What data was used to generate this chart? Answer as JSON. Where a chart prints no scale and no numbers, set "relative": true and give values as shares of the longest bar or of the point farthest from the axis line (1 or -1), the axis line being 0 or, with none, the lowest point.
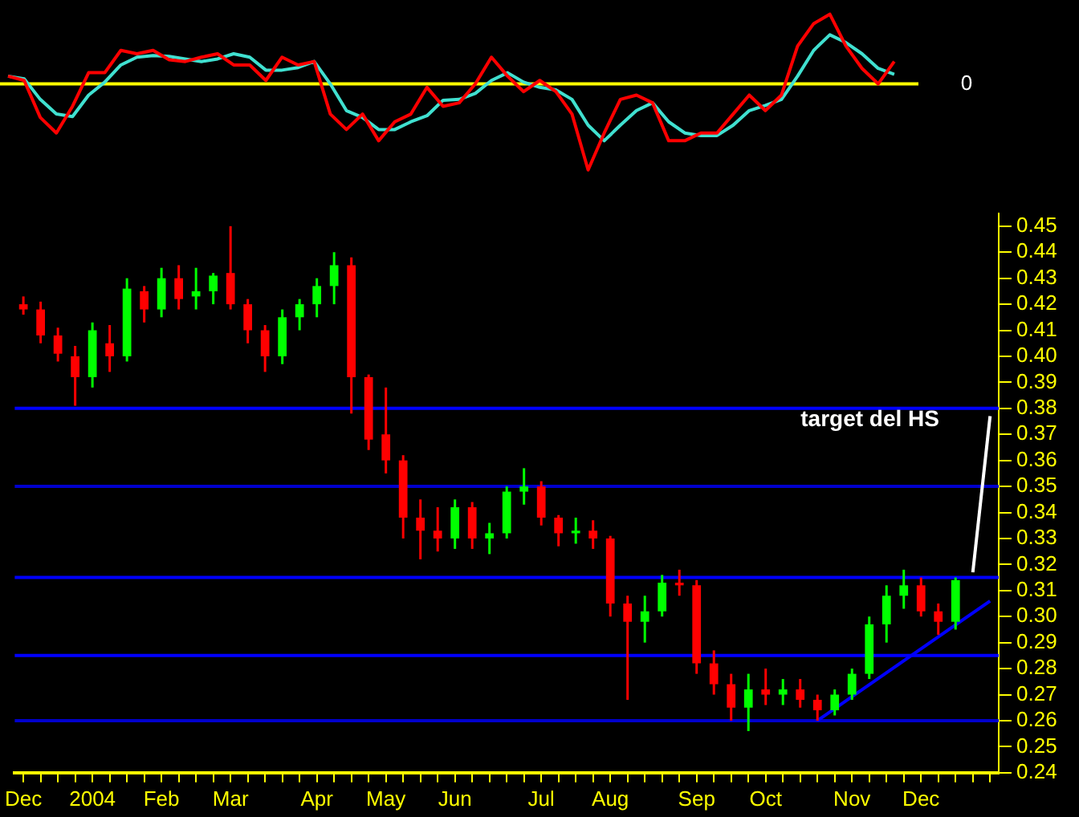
{
  "chart_data": [
    {
      "type": "line",
      "relative": true,
      "tick_labels": false,
      "categories": [
        null,
        null,
        null,
        null,
        null,
        null,
        null,
        null,
        null,
        null,
        null,
        null,
        null,
        null,
        null,
        null,
        null,
        null,
        null,
        null,
        null,
        null,
        null,
        null,
        null,
        null,
        null,
        null,
        null,
        null,
        null,
        null,
        null,
        null,
        null,
        null,
        null,
        null,
        null,
        null,
        null,
        null,
        null,
        null,
        null,
        null,
        null,
        null,
        null,
        null,
        null,
        null,
        null,
        null,
        null,
        null,
        null
      ],
      "series": [
        {
          "color": "#ff0000",
          "values": [
            0.09,
            0.04,
            -0.39,
            -0.57,
            -0.26,
            0.13,
            0.13,
            0.39,
            0.35,
            0.39,
            0.28,
            0.26,
            0.31,
            0.35,
            0.22,
            0.22,
            0.04,
            0.31,
            0.22,
            0.26,
            -0.35,
            -0.53,
            -0.35,
            -0.66,
            -0.44,
            -0.35,
            -0.04,
            -0.26,
            -0.22,
            0,
            0.31,
            0.09,
            -0.09,
            0.04,
            -0.09,
            -0.35,
            -1,
            -0.57,
            -0.18,
            -0.13,
            -0.22,
            -0.66,
            -0.66,
            -0.57,
            -0.57,
            -0.35,
            -0.13,
            -0.31,
            -0.13,
            0.44,
            0.7,
            0.81,
            0.44,
            0.18,
            0,
            0.26,
            null
          ]
        },
        {
          "color": "#40e0d0",
          "values": [
            0.09,
            0.06,
            -0.18,
            -0.35,
            -0.38,
            -0.13,
            0.02,
            0.22,
            0.31,
            0.33,
            0.32,
            0.29,
            0.26,
            0.29,
            0.35,
            0.31,
            0.16,
            0.16,
            0.19,
            0.26,
            0,
            -0.31,
            -0.39,
            -0.53,
            -0.53,
            -0.44,
            -0.37,
            -0.19,
            -0.18,
            -0.11,
            0.04,
            0.13,
            0.02,
            -0.04,
            -0.07,
            -0.18,
            -0.48,
            -0.66,
            -0.48,
            -0.31,
            -0.22,
            -0.44,
            -0.57,
            -0.6,
            -0.6,
            -0.48,
            -0.31,
            -0.25,
            -0.18,
            0.09,
            0.39,
            0.57,
            0.48,
            0.35,
            0.18,
            0.11,
            null
          ]
        }
      ],
      "ref_lines": [
        {
          "axis": "y",
          "value": 0,
          "label": "0",
          "color": "#ffff00"
        }
      ]
    },
    {
      "type": "candlestick",
      "categories": [
        "Dec",
        null,
        null,
        null,
        "2004",
        null,
        null,
        null,
        "Feb",
        null,
        null,
        null,
        "Mar",
        null,
        null,
        null,
        null,
        "Apr",
        null,
        null,
        null,
        "May",
        null,
        null,
        null,
        "Jun",
        null,
        null,
        null,
        null,
        "Jul",
        null,
        null,
        null,
        "Aug",
        null,
        null,
        null,
        null,
        "Sep",
        null,
        null,
        null,
        "Oct",
        null,
        null,
        null,
        null,
        "Nov",
        null,
        null,
        null,
        "Dec",
        null,
        null,
        null,
        null
      ],
      "ohlc": [
        [
          0.42,
          0.423,
          0.416,
          0.418
        ],
        [
          0.418,
          0.421,
          0.405,
          0.408
        ],
        [
          0.408,
          0.411,
          0.398,
          0.401
        ],
        [
          0.4,
          0.404,
          0.381,
          0.392
        ],
        [
          0.392,
          0.413,
          0.388,
          0.41
        ],
        [
          0.405,
          0.412,
          0.394,
          0.4
        ],
        [
          0.4,
          0.43,
          0.398,
          0.426
        ],
        [
          0.425,
          0.427,
          0.413,
          0.418
        ],
        [
          0.418,
          0.434,
          0.415,
          0.43
        ],
        [
          0.43,
          0.435,
          0.418,
          0.422
        ],
        [
          0.423,
          0.434,
          0.418,
          0.425
        ],
        [
          0.425,
          0.432,
          0.42,
          0.431
        ],
        [
          0.432,
          0.45,
          0.418,
          0.42
        ],
        [
          0.42,
          0.422,
          0.405,
          0.41
        ],
        [
          0.41,
          0.412,
          0.394,
          0.4
        ],
        [
          0.4,
          0.418,
          0.397,
          0.415
        ],
        [
          0.415,
          0.422,
          0.41,
          0.42
        ],
        [
          0.42,
          0.43,
          0.415,
          0.427
        ],
        [
          0.427,
          0.44,
          0.42,
          0.435
        ],
        [
          0.435,
          0.438,
          0.378,
          0.392
        ],
        [
          0.392,
          0.393,
          0.364,
          0.368
        ],
        [
          0.37,
          0.388,
          0.355,
          0.36
        ],
        [
          0.36,
          0.362,
          0.33,
          0.338
        ],
        [
          0.338,
          0.345,
          0.322,
          0.333
        ],
        [
          0.333,
          0.342,
          0.325,
          0.33
        ],
        [
          0.33,
          0.345,
          0.326,
          0.342
        ],
        [
          0.342,
          0.344,
          0.326,
          0.33
        ],
        [
          0.33,
          0.336,
          0.324,
          0.332
        ],
        [
          0.332,
          0.35,
          0.33,
          0.348
        ],
        [
          0.348,
          0.357,
          0.343,
          0.35
        ],
        [
          0.35,
          0.352,
          0.335,
          0.338
        ],
        [
          0.338,
          0.339,
          0.327,
          0.332
        ],
        [
          0.332,
          0.338,
          0.328,
          0.333
        ],
        [
          0.333,
          0.337,
          0.326,
          0.33
        ],
        [
          0.33,
          0.331,
          0.3,
          0.305
        ],
        [
          0.305,
          0.308,
          0.268,
          0.298
        ],
        [
          0.298,
          0.308,
          0.29,
          0.302
        ],
        [
          0.302,
          0.316,
          0.3,
          0.313
        ],
        [
          0.313,
          0.318,
          0.308,
          0.312
        ],
        [
          0.312,
          0.314,
          0.278,
          0.282
        ],
        [
          0.282,
          0.287,
          0.27,
          0.274
        ],
        [
          0.274,
          0.278,
          0.26,
          0.265
        ],
        [
          0.265,
          0.278,
          0.256,
          0.272
        ],
        [
          0.272,
          0.28,
          0.266,
          0.27
        ],
        [
          0.27,
          0.276,
          0.266,
          0.272
        ],
        [
          0.272,
          0.276,
          0.265,
          0.268
        ],
        [
          0.268,
          0.27,
          0.26,
          0.264
        ],
        [
          0.264,
          0.272,
          0.262,
          0.27
        ],
        [
          0.27,
          0.28,
          0.268,
          0.278
        ],
        [
          0.278,
          0.3,
          0.276,
          0.297
        ],
        [
          0.297,
          0.312,
          0.29,
          0.308
        ],
        [
          0.308,
          0.318,
          0.303,
          0.312
        ],
        [
          0.312,
          0.315,
          0.3,
          0.302
        ],
        [
          0.302,
          0.305,
          0.293,
          0.298
        ],
        [
          0.298,
          0.315,
          0.295,
          0.314
        ],
        null,
        null
      ],
      "colors": [
        "#ff0000",
        "#ff0000",
        "#ff0000",
        "#ff0000",
        "#00ff00",
        "#ff0000",
        "#00ff00",
        "#ff0000",
        "#00ff00",
        "#ff0000",
        "#00ff00",
        "#00ff00",
        "#ff0000",
        "#ff0000",
        "#ff0000",
        "#00ff00",
        "#00ff00",
        "#00ff00",
        "#00ff00",
        "#ff0000",
        "#ff0000",
        "#ff0000",
        "#ff0000",
        "#ff0000",
        "#ff0000",
        "#00ff00",
        "#ff0000",
        "#00ff00",
        "#00ff00",
        "#00ff00",
        "#ff0000",
        "#ff0000",
        "#00ff00",
        "#ff0000",
        "#ff0000",
        "#ff0000",
        "#00ff00",
        "#00ff00",
        "#ff0000",
        "#ff0000",
        "#ff0000",
        "#ff0000",
        "#00ff00",
        "#ff0000",
        "#00ff00",
        "#ff0000",
        "#ff0000",
        "#00ff00",
        "#00ff00",
        "#00ff00",
        "#00ff00",
        "#00ff00",
        "#ff0000",
        "#ff0000",
        "#00ff00",
        null,
        null
      ],
      "series": [
        {
          "type": "line",
          "color": "#0000ff",
          "values": [
            null,
            null,
            null,
            null,
            null,
            null,
            null,
            null,
            null,
            null,
            null,
            null,
            null,
            null,
            null,
            null,
            null,
            null,
            null,
            null,
            null,
            null,
            null,
            null,
            null,
            null,
            null,
            null,
            null,
            null,
            null,
            null,
            null,
            null,
            null,
            null,
            null,
            null,
            null,
            null,
            null,
            null,
            null,
            null,
            null,
            null,
            0.26,
            null,
            null,
            null,
            null,
            null,
            null,
            null,
            null,
            null,
            0.306
          ]
        },
        {
          "type": "line",
          "color": "#ffffff",
          "values": [
            null,
            null,
            null,
            null,
            null,
            null,
            null,
            null,
            null,
            null,
            null,
            null,
            null,
            null,
            null,
            null,
            null,
            null,
            null,
            null,
            null,
            null,
            null,
            null,
            null,
            null,
            null,
            null,
            null,
            null,
            null,
            null,
            null,
            null,
            null,
            null,
            null,
            null,
            null,
            null,
            null,
            null,
            null,
            null,
            null,
            null,
            null,
            null,
            null,
            null,
            null,
            null,
            null,
            null,
            null,
            0.317,
            0.377
          ]
        }
      ],
      "ylim": [
        0.24,
        0.455
      ],
      "yticks": [
        0.24,
        0.25,
        0.26,
        0.27,
        0.28,
        0.29,
        {
          "value": 0.3,
          "label": "0.30"
        },
        0.31,
        0.32,
        0.33,
        0.34,
        0.35,
        0.36,
        0.37,
        0.38,
        0.39,
        {
          "value": 0.4,
          "label": "0.40"
        },
        0.41,
        0.42,
        0.43,
        0.44,
        0.45
      ],
      "ref_lines": [
        {
          "axis": "y",
          "value": 0.38,
          "color": "#0000ff"
        },
        {
          "axis": "y",
          "value": 0.35,
          "color": "#0000cc"
        },
        {
          "axis": "y",
          "value": 0.315,
          "color": "#0000ff"
        },
        {
          "axis": "y",
          "value": 0.285,
          "color": "#0000ff"
        },
        {
          "axis": "y",
          "value": 0.26,
          "color": "#0000cc"
        }
      ],
      "annotations": [
        "target del HS"
      ]
    }
  ]
}
